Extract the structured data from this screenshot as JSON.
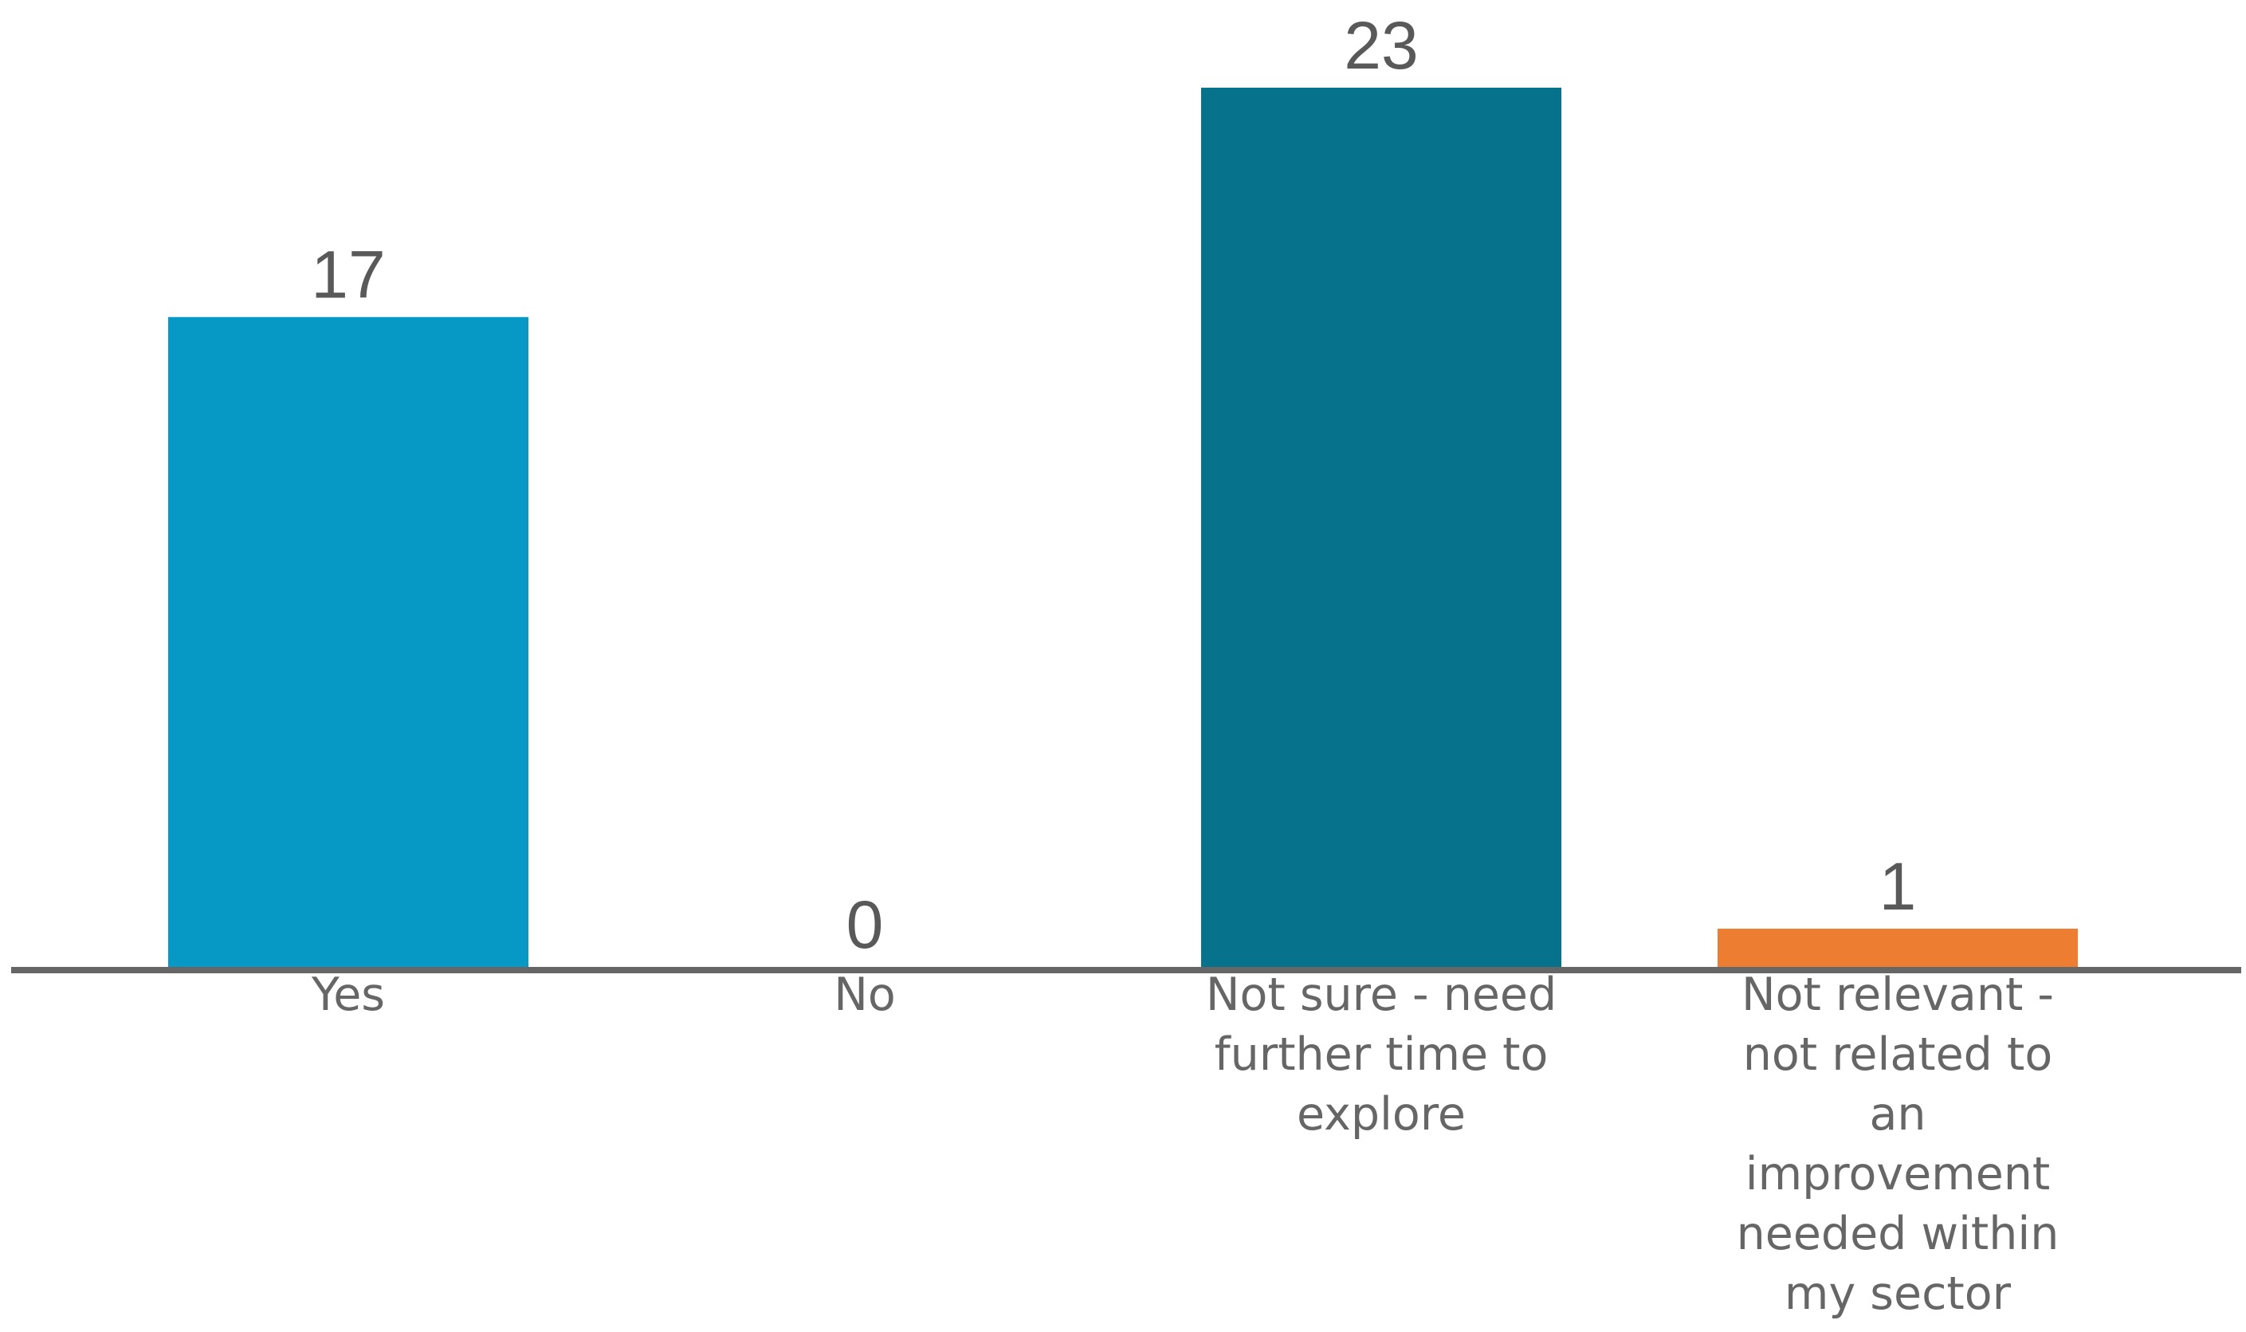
{
  "chart_data": {
    "type": "bar",
    "categories": [
      [
        "Yes"
      ],
      [
        "No"
      ],
      [
        "Not sure - need",
        "further time to",
        "explore"
      ],
      [
        "Not relevant -",
        "not related to",
        "an",
        "improvement",
        "needed within",
        "my sector"
      ]
    ],
    "values": [
      17,
      0,
      23,
      1
    ],
    "bar_colors": [
      "#0699C6",
      "#06728C",
      "#06728C",
      "#ED7D31"
    ],
    "axis_color": "#666666",
    "label_color": "#595959",
    "ylim": [
      0,
      23
    ],
    "grid": false,
    "legend": "none"
  }
}
